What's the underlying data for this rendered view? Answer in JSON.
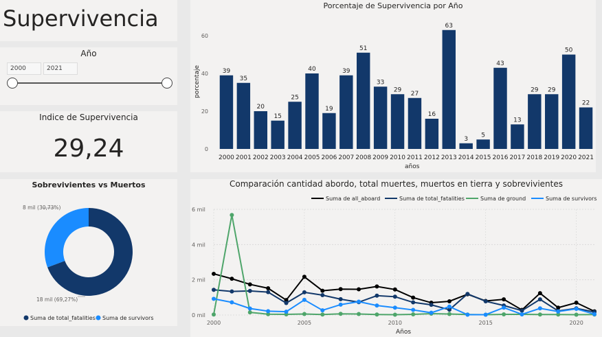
{
  "header": {
    "title": "Supervivencia"
  },
  "slicer": {
    "title": "Año",
    "from": "2000",
    "to": "2021",
    "range": [
      2000,
      2021
    ],
    "selected": [
      2000,
      2021
    ]
  },
  "kpi": {
    "title": "Indice de Supervivencia",
    "value": "29,24"
  },
  "donut": {
    "title": "Sobrevivientes vs Muertos",
    "survivors_label": "8 mil (30,73%)",
    "fatalities_label": "18 mil (69,27%)",
    "legend_fatalities": "Suma de total_fatalities",
    "legend_survivors": "Suma de survivors"
  },
  "colors": {
    "navy": "#12386a",
    "blue": "#1a8cff",
    "black": "#000000",
    "green": "#4ea56a",
    "grid": "#d6d6d6",
    "bg": "#f3f2f1",
    "page": "#e9e9e9"
  },
  "bar_chart": {
    "title": "Porcentaje de Supervivencia por Año",
    "xlabel": "años",
    "ylabel": "porcentaje"
  },
  "line_chart": {
    "title": "Comparación cantidad abordo, total muertes, muertos en tierra y sobrevivientes",
    "xlabel": "Años"
  },
  "chart_data": [
    {
      "type": "pie",
      "title": "Sobrevivientes vs Muertos",
      "categories": [
        "Suma de total_fatalities",
        "Suma de survivors"
      ],
      "values": [
        69.27,
        30.73
      ],
      "data_labels": [
        "18 mil (69,27%)",
        "8 mil (30,73%)"
      ]
    },
    {
      "type": "bar",
      "title": "Porcentaje de Supervivencia por Año",
      "xlabel": "años",
      "ylabel": "porcentaje",
      "categories": [
        "2000",
        "2001",
        "2002",
        "2003",
        "2004",
        "2005",
        "2006",
        "2007",
        "2008",
        "2009",
        "2010",
        "2011",
        "2012",
        "2013",
        "2014",
        "2015",
        "2016",
        "2017",
        "2018",
        "2019",
        "2020",
        "2021"
      ],
      "values": [
        39,
        35,
        20,
        15,
        25,
        40,
        19,
        39,
        51,
        33,
        29,
        27,
        16,
        63,
        3,
        5,
        43,
        13,
        29,
        29,
        50,
        22
      ],
      "yticks": [
        "0",
        "20",
        "40",
        "60"
      ],
      "ylim": [
        0,
        63
      ],
      "grid": false
    },
    {
      "type": "line",
      "title": "Comparación cantidad abordo, total muertes, muertos en tierra y sobrevivientes",
      "xlabel": "Años",
      "x": [
        2000,
        2001,
        2002,
        2003,
        2004,
        2005,
        2006,
        2007,
        2008,
        2009,
        2010,
        2011,
        2012,
        2013,
        2014,
        2015,
        2016,
        2017,
        2018,
        2019,
        2020,
        2021
      ],
      "xticks": [
        "2000",
        "2005",
        "2010",
        "2015",
        "2020"
      ],
      "yticks": [
        "0 mil",
        "2 mil",
        "4 mil",
        "6 mil"
      ],
      "ylim": [
        0,
        6000
      ],
      "grid": true,
      "legend_position": "top",
      "series": [
        {
          "name": "Suma de all_aboard",
          "color": "#000000",
          "values": [
            2340,
            2060,
            1740,
            1520,
            850,
            2170,
            1380,
            1470,
            1460,
            1620,
            1450,
            990,
            700,
            780,
            1180,
            800,
            890,
            290,
            1240,
            420,
            700,
            210
          ]
        },
        {
          "name": "Suma de total_fatalities",
          "color": "#12386a",
          "values": [
            1430,
            1340,
            1370,
            1300,
            680,
            1290,
            1130,
            900,
            730,
            1100,
            1040,
            720,
            580,
            300,
            1200,
            780,
            540,
            250,
            890,
            230,
            380,
            170
          ]
        },
        {
          "name": "Suma de ground",
          "color": "#4ea56a",
          "values": [
            30,
            5680,
            150,
            50,
            40,
            60,
            30,
            70,
            60,
            30,
            20,
            40,
            80,
            60,
            30,
            20,
            40,
            40,
            30,
            30,
            20,
            30
          ]
        },
        {
          "name": "Suma de survivors",
          "color": "#1a8cff",
          "values": [
            920,
            720,
            370,
            220,
            190,
            860,
            270,
            590,
            760,
            540,
            420,
            290,
            130,
            480,
            20,
            20,
            420,
            40,
            380,
            200,
            350,
            50
          ]
        }
      ]
    }
  ]
}
